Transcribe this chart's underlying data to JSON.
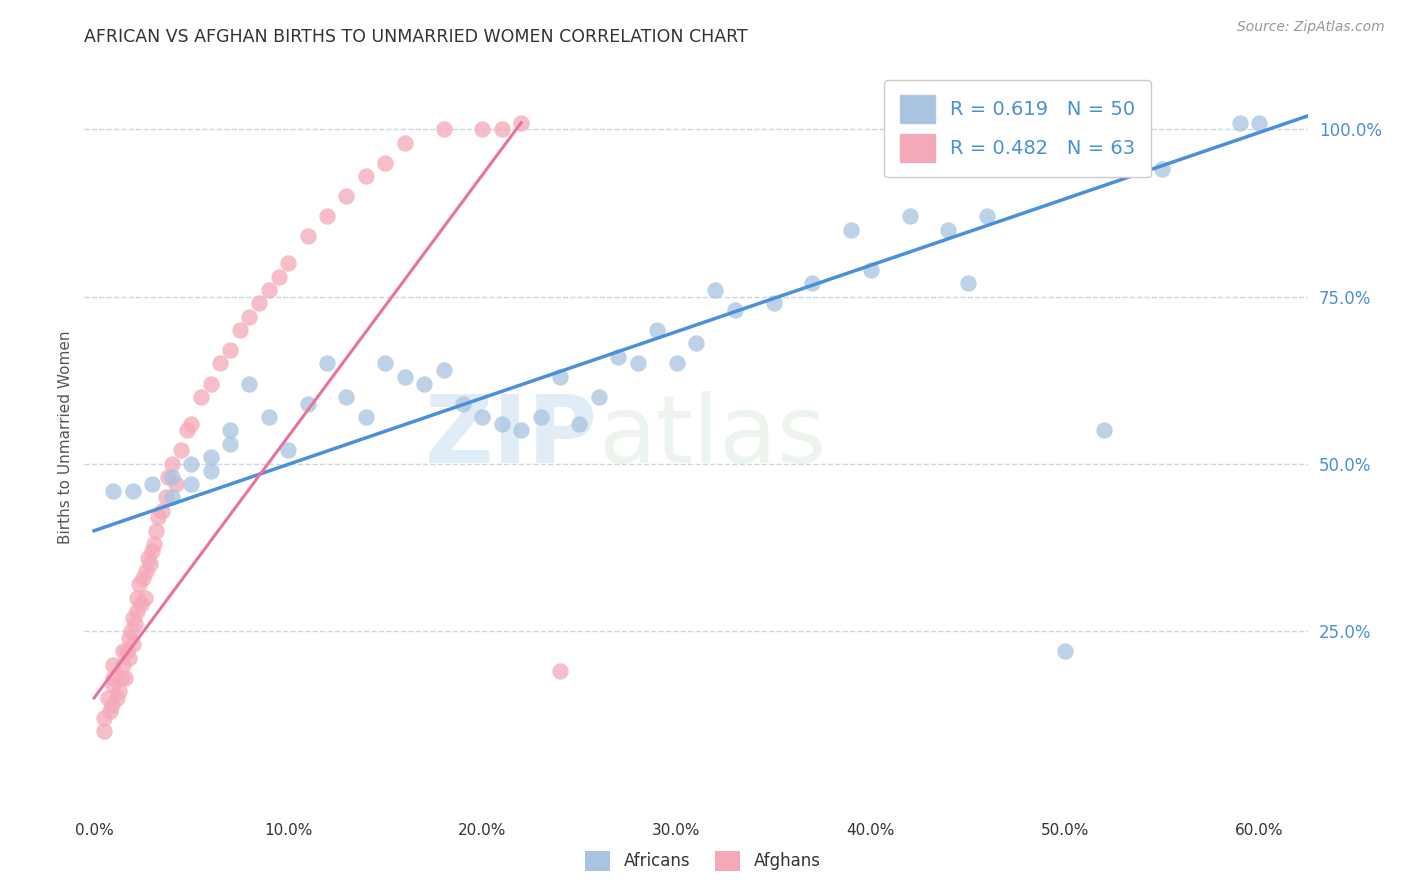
{
  "title": "AFRICAN VS AFGHAN BIRTHS TO UNMARRIED WOMEN CORRELATION CHART",
  "source": "Source: ZipAtlas.com",
  "ylabel": "Births to Unmarried Women",
  "watermark_zip": "ZIP",
  "watermark_atlas": "atlas",
  "xlim": [
    -0.005,
    0.625
  ],
  "ylim": [
    -0.02,
    1.1
  ],
  "xtick_labels": [
    "0.0%",
    "10.0%",
    "20.0%",
    "30.0%",
    "40.0%",
    "50.0%",
    "60.0%"
  ],
  "ytick_labels": [
    "25.0%",
    "50.0%",
    "75.0%",
    "100.0%"
  ],
  "ytick_positions": [
    0.25,
    0.5,
    0.75,
    1.0
  ],
  "xtick_positions": [
    0.0,
    0.1,
    0.2,
    0.3,
    0.4,
    0.5,
    0.6
  ],
  "africans_R": 0.619,
  "africans_N": 50,
  "afghans_R": 0.482,
  "afghans_N": 63,
  "africans_color": "#a8c4e0",
  "afghans_color": "#f4a8b8",
  "africans_line_color": "#4a90d9",
  "afghans_line_color": "#e8739a",
  "legend_text_color": "#4a90d9",
  "africans_x": [
    0.01,
    0.02,
    0.03,
    0.04,
    0.04,
    0.05,
    0.05,
    0.06,
    0.06,
    0.07,
    0.07,
    0.08,
    0.09,
    0.1,
    0.11,
    0.12,
    0.13,
    0.14,
    0.15,
    0.16,
    0.17,
    0.18,
    0.19,
    0.2,
    0.21,
    0.22,
    0.23,
    0.24,
    0.25,
    0.26,
    0.27,
    0.28,
    0.29,
    0.3,
    0.31,
    0.32,
    0.33,
    0.35,
    0.37,
    0.39,
    0.4,
    0.42,
    0.44,
    0.45,
    0.46,
    0.5,
    0.52,
    0.55,
    0.59,
    0.6
  ],
  "africans_y": [
    0.46,
    0.46,
    0.47,
    0.45,
    0.48,
    0.47,
    0.5,
    0.49,
    0.51,
    0.53,
    0.55,
    0.62,
    0.57,
    0.52,
    0.59,
    0.65,
    0.6,
    0.57,
    0.65,
    0.63,
    0.62,
    0.64,
    0.59,
    0.57,
    0.56,
    0.55,
    0.57,
    0.63,
    0.56,
    0.6,
    0.66,
    0.65,
    0.7,
    0.65,
    0.68,
    0.76,
    0.73,
    0.74,
    0.77,
    0.85,
    0.79,
    0.87,
    0.85,
    0.77,
    0.87,
    0.22,
    0.55,
    0.94,
    1.01,
    1.01
  ],
  "afghans_x": [
    0.005,
    0.005,
    0.007,
    0.008,
    0.009,
    0.01,
    0.01,
    0.01,
    0.012,
    0.013,
    0.014,
    0.015,
    0.015,
    0.016,
    0.017,
    0.018,
    0.018,
    0.019,
    0.02,
    0.02,
    0.021,
    0.022,
    0.022,
    0.023,
    0.024,
    0.025,
    0.026,
    0.027,
    0.028,
    0.029,
    0.03,
    0.031,
    0.032,
    0.033,
    0.035,
    0.037,
    0.038,
    0.04,
    0.042,
    0.045,
    0.048,
    0.05,
    0.055,
    0.06,
    0.065,
    0.07,
    0.075,
    0.08,
    0.085,
    0.09,
    0.095,
    0.1,
    0.11,
    0.12,
    0.13,
    0.14,
    0.15,
    0.16,
    0.18,
    0.2,
    0.21,
    0.22,
    0.24
  ],
  "afghans_y": [
    0.1,
    0.12,
    0.15,
    0.13,
    0.14,
    0.17,
    0.18,
    0.2,
    0.15,
    0.16,
    0.18,
    0.2,
    0.22,
    0.18,
    0.22,
    0.24,
    0.21,
    0.25,
    0.23,
    0.27,
    0.26,
    0.28,
    0.3,
    0.32,
    0.29,
    0.33,
    0.3,
    0.34,
    0.36,
    0.35,
    0.37,
    0.38,
    0.4,
    0.42,
    0.43,
    0.45,
    0.48,
    0.5,
    0.47,
    0.52,
    0.55,
    0.56,
    0.6,
    0.62,
    0.65,
    0.67,
    0.7,
    0.72,
    0.74,
    0.76,
    0.78,
    0.8,
    0.84,
    0.87,
    0.9,
    0.93,
    0.95,
    0.98,
    1.0,
    1.0,
    1.0,
    1.01,
    0.19
  ],
  "background_color": "#ffffff",
  "grid_color": "#c8d8e8",
  "title_color": "#333333",
  "axis_label_color": "#555555",
  "tick_color_y": "#4a90d9",
  "tick_color_x": "#333333",
  "afghan_line_x": [
    0.0,
    0.22
  ],
  "afghan_line_y": [
    0.15,
    1.01
  ],
  "african_line_x": [
    0.0,
    0.625
  ],
  "african_line_y": [
    0.4,
    1.02
  ]
}
